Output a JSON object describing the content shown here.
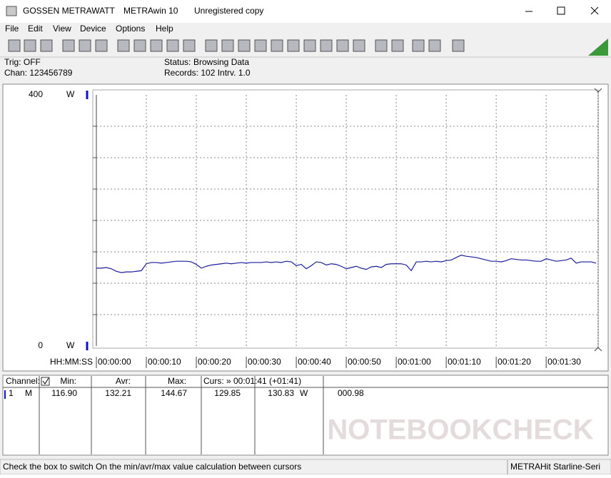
{
  "title_bar": {
    "app": "GOSSEN METRAWATT",
    "program": "METRAwin 10",
    "license": "Unregistered copy"
  },
  "menu": [
    "File",
    "Edit",
    "View",
    "Device",
    "Options",
    "Help"
  ],
  "status": {
    "trig": "Trig: OFF",
    "chan": "Chan: 123456789",
    "status_label": "Status:",
    "status_value": "Browsing Data",
    "records": "Records: 102  Intrv. 1.0"
  },
  "chart_data": {
    "type": "line",
    "x_label": "HH:MM:SS",
    "y_unit": "W",
    "x": [
      0,
      1,
      2,
      3,
      4,
      5,
      6,
      7,
      8,
      9,
      10,
      11,
      12,
      13,
      14,
      15,
      16,
      17,
      18,
      19,
      20,
      21,
      22,
      23,
      24,
      25,
      26,
      27,
      28,
      29,
      30,
      31,
      32,
      33,
      34,
      35,
      36,
      37,
      38,
      39,
      40,
      41,
      42,
      43,
      44,
      45,
      46,
      47,
      48,
      49,
      50,
      51,
      52,
      53,
      54,
      55,
      56,
      57,
      58,
      59,
      60,
      61,
      62,
      63,
      64,
      65,
      66,
      67,
      68,
      69,
      70,
      71,
      72,
      73,
      74,
      75,
      76,
      77,
      78,
      79,
      80,
      81,
      82,
      83,
      84,
      85,
      86,
      87,
      88,
      89,
      90,
      91,
      92,
      93,
      94,
      95,
      96,
      97,
      98,
      99,
      100
    ],
    "series": [
      {
        "color": "#1c1c9c",
        "values": [
          124,
          124,
          125,
          123,
          119,
          116.9,
          118,
          118,
          119,
          120,
          131,
          133,
          133,
          132,
          133,
          134,
          135,
          135,
          135,
          134,
          130,
          124,
          127,
          129,
          130,
          131,
          132,
          131,
          132,
          133,
          132,
          133,
          133,
          133,
          134,
          133,
          134,
          133,
          135,
          134,
          128,
          130,
          123,
          128,
          134,
          133,
          129,
          131,
          130,
          127,
          123,
          125,
          127,
          124,
          122,
          126,
          127,
          125,
          130,
          131,
          131,
          131,
          129,
          120,
          134,
          134,
          135,
          134,
          135,
          134,
          136,
          137,
          141,
          144.67,
          143,
          142,
          141,
          139,
          137,
          135,
          135,
          134,
          136,
          139,
          138,
          137,
          137,
          136,
          135,
          135,
          139,
          137,
          135,
          136,
          137,
          140,
          132,
          134,
          134,
          134,
          132
        ]
      }
    ],
    "xlim": [
      0,
      100.4
    ],
    "ylim": [
      0,
      400
    ],
    "yticks": [
      0,
      400
    ],
    "xticks": [
      {
        "value": 0,
        "label": "00:00:00"
      },
      {
        "value": 10,
        "label": "00:00:10"
      },
      {
        "value": 20,
        "label": "00:00:20"
      },
      {
        "value": 30,
        "label": "00:00:30"
      },
      {
        "value": 40,
        "label": "00:00:40"
      },
      {
        "value": 50,
        "label": "00:00:50"
      },
      {
        "value": 60,
        "label": "00:01:00"
      },
      {
        "value": 70,
        "label": "00:01:10"
      },
      {
        "value": 80,
        "label": "00:01:20"
      },
      {
        "value": 90,
        "label": "00:01:30"
      }
    ],
    "grid": true
  },
  "table": {
    "header": [
      "Channel:",
      "Min:",
      "Avr:",
      "Max:",
      "Curs: » 00:01:41 (+01:41)"
    ],
    "row": [
      "1",
      "M",
      "116.90",
      "132.21",
      "144.67",
      "129.85",
      "130.83",
      "W",
      "000.98"
    ]
  },
  "status_bar": [
    "Check the box to switch On the min/avr/max value calculation between cursors",
    "METRAHit Starline-Seri"
  ],
  "watermark": "NOTEBOOKCHECK"
}
